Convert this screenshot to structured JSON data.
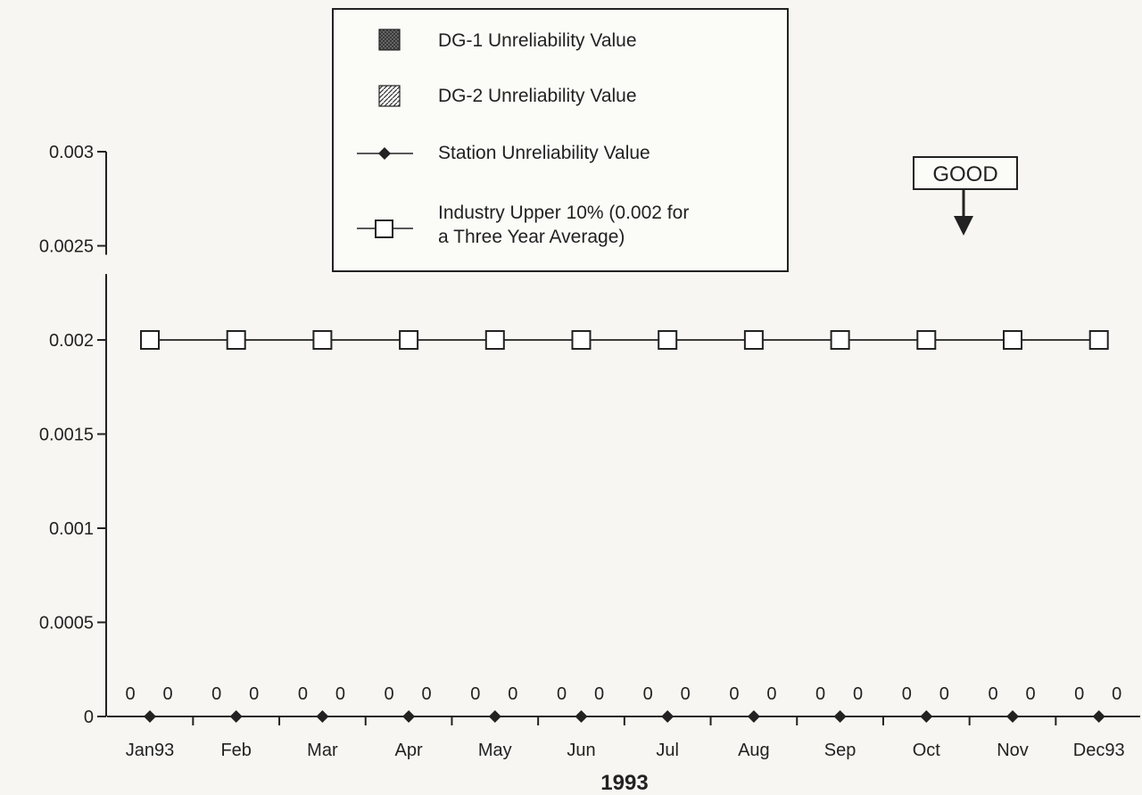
{
  "chart_data": {
    "type": "line",
    "categories": [
      "Jan93",
      "Feb",
      "Mar",
      "Apr",
      "May",
      "Jun",
      "Jul",
      "Aug",
      "Sep",
      "Oct",
      "Nov",
      "Dec93"
    ],
    "xlabel": "1993",
    "ylabel": "",
    "ylim": [
      0,
      0.003
    ],
    "y_ticks": [
      "0",
      "0.0005",
      "0.001",
      "0.0015",
      "0.002",
      "0.0025",
      "0.003"
    ],
    "y_axis_break": [
      0.0025,
      0.00235
    ],
    "grid": false,
    "legend_position": "top-center",
    "series": [
      {
        "name": "DG-1 Unreliability Value",
        "kind": "bar",
        "pattern": "crosshatch-dark",
        "values": [
          0,
          0,
          0,
          0,
          0,
          0,
          0,
          0,
          0,
          0,
          0,
          0
        ]
      },
      {
        "name": "DG-2 Unreliability Value",
        "kind": "bar",
        "pattern": "diagonal-hatch",
        "values": [
          0,
          0,
          0,
          0,
          0,
          0,
          0,
          0,
          0,
          0,
          0,
          0
        ]
      },
      {
        "name": "Station Unreliability Value",
        "kind": "line",
        "marker": "diamond-filled",
        "values": [
          0,
          0,
          0,
          0,
          0,
          0,
          0,
          0,
          0,
          0,
          0,
          0
        ]
      },
      {
        "name": "Industry Upper 10% (0.002 for a Three Year Average)",
        "name_lines": [
          "Industry Upper 10% (0.002 for",
          "a Three Year Average)"
        ],
        "kind": "line",
        "marker": "square-open",
        "values": [
          0.002,
          0.002,
          0.002,
          0.002,
          0.002,
          0.002,
          0.002,
          0.002,
          0.002,
          0.002,
          0.002,
          0.002
        ]
      }
    ],
    "data_labels": [
      [
        "0",
        "0"
      ],
      [
        "0",
        "0"
      ],
      [
        "0",
        "0"
      ],
      [
        "0",
        "0"
      ],
      [
        "0",
        "0"
      ],
      [
        "0",
        "0"
      ],
      [
        "0",
        "0"
      ],
      [
        "0",
        "0"
      ],
      [
        "0",
        "0"
      ],
      [
        "0",
        "0"
      ],
      [
        "0",
        "0"
      ],
      [
        "0",
        "0"
      ]
    ],
    "annotation": {
      "text": "GOOD",
      "direction": "down"
    }
  }
}
